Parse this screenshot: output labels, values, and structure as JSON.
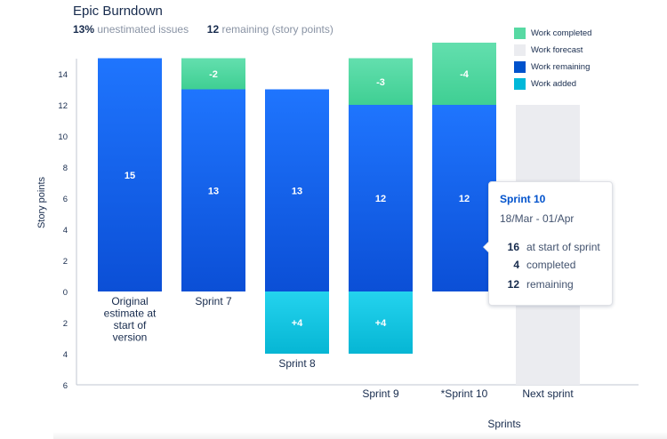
{
  "header": {
    "title": "Epic Burndown",
    "unestimated_value": "13%",
    "unestimated_label": "unestimated issues",
    "remaining_value": "12",
    "remaining_label": "remaining (story points)"
  },
  "legend": [
    {
      "label": "Work completed",
      "color": "#57d9a3"
    },
    {
      "label": "Work forecast",
      "color": "#ebecf0"
    },
    {
      "label": "Work remaining",
      "color": "#0065ff"
    },
    {
      "label": "Work added",
      "color": "#00c7e6"
    }
  ],
  "tooltip": {
    "title": "Sprint 10",
    "dates": "18/Mar - 01/Apr",
    "rows": [
      {
        "value": "16",
        "label": "at start of sprint"
      },
      {
        "value": "4",
        "label": "completed"
      },
      {
        "value": "12",
        "label": "remaining"
      }
    ]
  },
  "chart_data": {
    "type": "bar",
    "xlabel": "Sprints",
    "ylabel": "Story points",
    "yticks_up": [
      0,
      2,
      4,
      6,
      8,
      10,
      12,
      14
    ],
    "yticks_down": [
      2,
      4,
      6
    ],
    "ylim": [
      -6,
      15
    ],
    "categories": [
      "Original estimate at start of version",
      "Sprint 7",
      "Sprint 8",
      "Sprint 9",
      "*Sprint 10",
      "Next sprint"
    ],
    "bars": [
      {
        "category": "Original estimate at start of version",
        "remaining": 15,
        "completed": 0,
        "added": 0,
        "forecast": 0,
        "remaining_label": "15"
      },
      {
        "category": "Sprint 7",
        "remaining": 13,
        "completed": 2,
        "added": 0,
        "forecast": 0,
        "remaining_label": "13",
        "completed_label": "-2"
      },
      {
        "category": "Sprint 8",
        "remaining": 13,
        "completed": 0,
        "added": 4,
        "forecast": 0,
        "remaining_label": "13",
        "added_label": "+4"
      },
      {
        "category": "Sprint 9",
        "remaining": 12,
        "completed": 3,
        "added": 4,
        "forecast": 0,
        "remaining_label": "12",
        "completed_label": "-3",
        "added_label": "+4"
      },
      {
        "category": "*Sprint 10",
        "remaining": 12,
        "completed": 4,
        "added": 0,
        "forecast": 0,
        "remaining_label": "12",
        "completed_label": "-4"
      },
      {
        "category": "Next sprint",
        "remaining": 0,
        "completed": 0,
        "added": 0,
        "forecast": 12
      }
    ],
    "colors": {
      "completed": "#57d9a3",
      "forecast": "#ebecf0",
      "remaining": "#0065ff",
      "added": "#00c7e6"
    }
  }
}
